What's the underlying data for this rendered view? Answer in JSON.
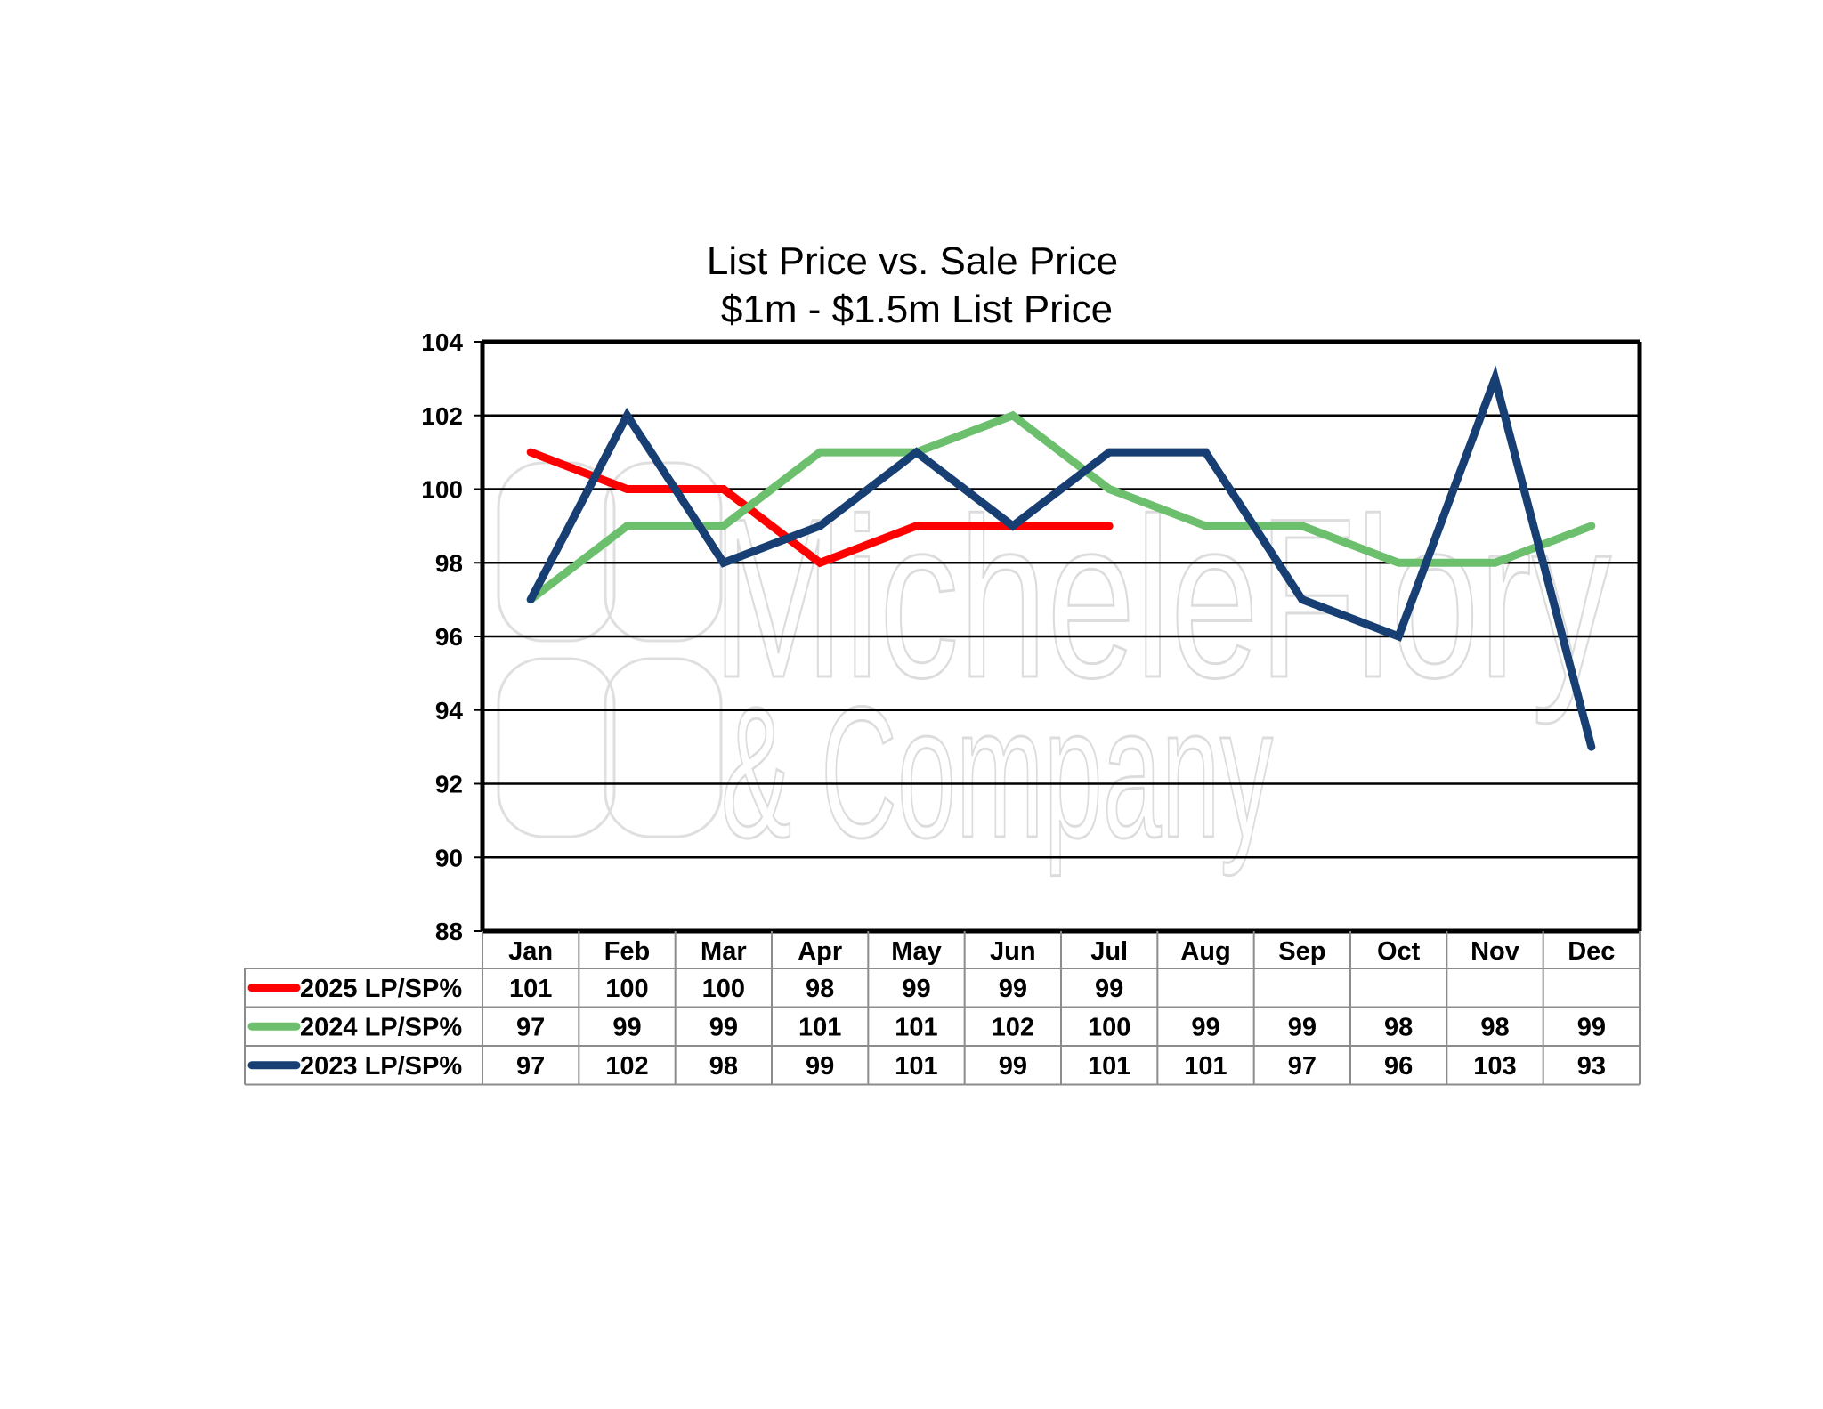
{
  "chart_data": {
    "type": "line",
    "title": "List Price vs. Sale Price",
    "subtitle": "$1m - $1.5m List Price",
    "categories": [
      "Jan",
      "Feb",
      "Mar",
      "Apr",
      "May",
      "Jun",
      "Jul",
      "Aug",
      "Sep",
      "Oct",
      "Nov",
      "Dec"
    ],
    "ylim": [
      88,
      104
    ],
    "yticks": [
      88,
      90,
      92,
      94,
      96,
      98,
      100,
      102,
      104
    ],
    "grid": true,
    "legend": "data-table-left",
    "series": [
      {
        "name": "2025 LP/SP%",
        "color": "#ff0000",
        "values": [
          101,
          100,
          100,
          98,
          99,
          99,
          99,
          null,
          null,
          null,
          null,
          null
        ]
      },
      {
        "name": "2024 LP/SP%",
        "color": "#6cbf6c",
        "values": [
          97,
          99,
          99,
          101,
          101,
          102,
          100,
          99,
          99,
          98,
          98,
          99
        ]
      },
      {
        "name": "2023 LP/SP%",
        "color": "#173f73",
        "values": [
          97,
          102,
          98,
          99,
          101,
          99,
          101,
          101,
          97,
          96,
          103,
          93
        ]
      }
    ]
  },
  "watermark": {
    "line1": "MicheleFlory",
    "line2": "& Company"
  }
}
